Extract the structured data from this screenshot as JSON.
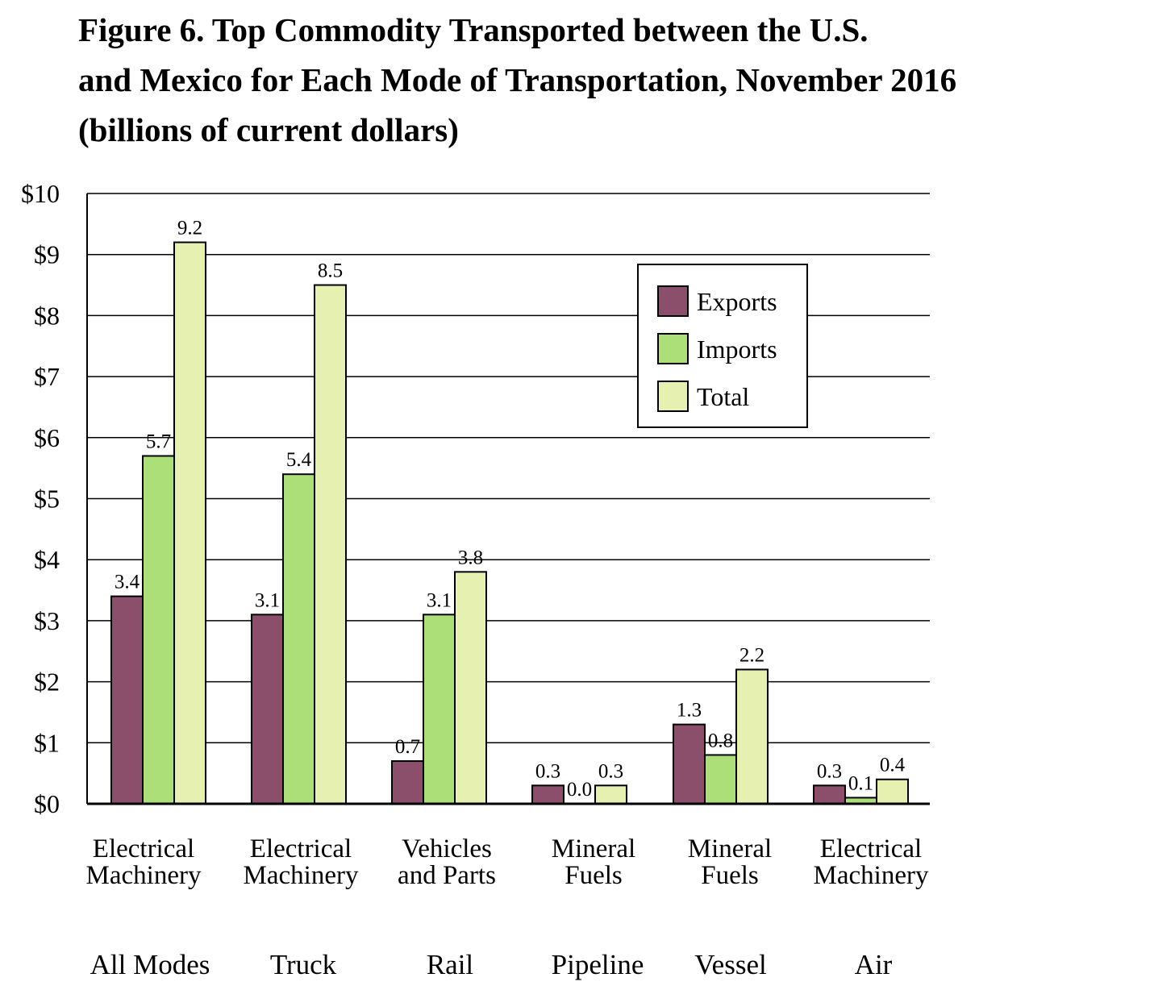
{
  "title_lines": [
    "Figure 6. Top Commodity Transported between the U.S.",
    "and Mexico for Each Mode of Transportation, November 2016",
    "(billions of current dollars)"
  ],
  "colors": {
    "exports": "#8b4f6b",
    "imports": "#acdf78",
    "total": "#e6f0b0",
    "grid": "#000000"
  },
  "chart_data": {
    "type": "bar",
    "title": "Figure 6. Top Commodity Transported between the U.S. and Mexico for Each Mode of Transportation, November 2016 (billions of current dollars)",
    "categories": [
      [
        "Electrical",
        "Machinery"
      ],
      [
        "Electrical",
        "Machinery"
      ],
      [
        "Vehicles",
        "and Parts"
      ],
      [
        "Mineral",
        "Fuels"
      ],
      [
        "Mineral",
        "Fuels"
      ],
      [
        "Electrical",
        "Machinery"
      ]
    ],
    "modes": [
      "All Modes",
      "Truck",
      "Rail",
      "Pipeline",
      "Vessel",
      "Air"
    ],
    "series": [
      {
        "name": "Exports",
        "color_key": "exports",
        "values": [
          3.4,
          3.1,
          0.7,
          0.3,
          1.3,
          0.3
        ]
      },
      {
        "name": "Imports",
        "color_key": "imports",
        "values": [
          5.7,
          5.4,
          3.1,
          0.0,
          0.8,
          0.1
        ]
      },
      {
        "name": "Total",
        "color_key": "total",
        "values": [
          9.2,
          8.5,
          3.8,
          0.3,
          2.2,
          0.4
        ]
      }
    ],
    "data_labels": [
      [
        "3.4",
        "3.1",
        "0.7",
        "0.3",
        "1.3",
        "0.3"
      ],
      [
        "5.7",
        "5.4",
        "3.1",
        "0.0",
        "0.8",
        "0.1"
      ],
      [
        "9.2",
        "8.5",
        "3.8",
        "0.3",
        "2.2",
        "0.4"
      ]
    ],
    "yticks": [
      "$0",
      "$1",
      "$2",
      "$3",
      "$4",
      "$5",
      "$6",
      "$7",
      "$8",
      "$9",
      "$10"
    ],
    "ylim": [
      0,
      10
    ],
    "xlabel": "",
    "ylabel": "",
    "grid": true,
    "legend": "upper-right"
  }
}
